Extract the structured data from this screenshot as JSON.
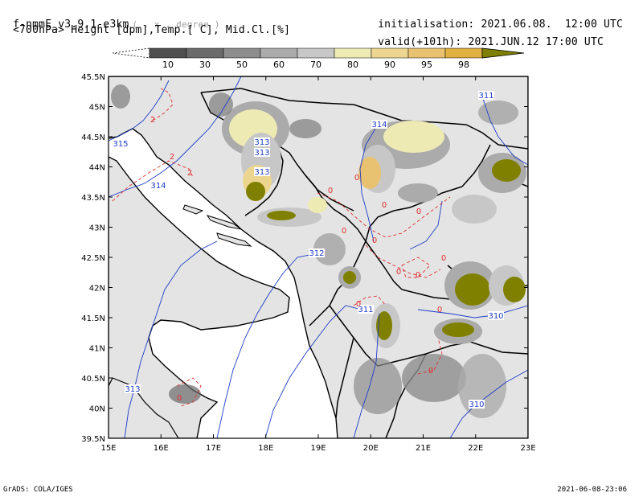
{
  "header": {
    "model": "f-nmmE_v3.9.1-e3km",
    "resolution_note": "( . x . degree )",
    "fields": "<700hPa> Height [dpm],Temp.[ C], Mid.Cl.[%]",
    "init_label": "initialisation:",
    "init_value": "2021.06.08.  12:00 UTC",
    "valid_label": "valid(+101h):",
    "valid_value": "2021.JUN.12 17:00 UTC"
  },
  "colorbar": {
    "labels": [
      "10",
      "30",
      "50",
      "60",
      "70",
      "80",
      "90",
      "95",
      "98"
    ],
    "colors": [
      "#4f4f4f",
      "#6b6b6b",
      "#8d8d8d",
      "#ababab",
      "#c7c7c7",
      "#eeeab4",
      "#ecd68f",
      "#e9c271",
      "#e0b040",
      "#808000"
    ]
  },
  "map": {
    "lat_labels": [
      "45.5N",
      "45N",
      "44.5N",
      "44N",
      "43.5N",
      "43N",
      "42.5N",
      "42N",
      "41.5N",
      "41N",
      "40.5N",
      "40N",
      "39.5N"
    ],
    "lon_labels": [
      "15E",
      "16E",
      "17E",
      "18E",
      "19E",
      "20E",
      "21E",
      "22E",
      "23E"
    ],
    "height_contour_labels": [
      "311",
      "314",
      "313",
      "313",
      "313",
      "315",
      "314",
      "312",
      "311",
      "310",
      "313",
      "310"
    ],
    "temp_contour_labels": [
      "2",
      "2",
      "2",
      "0",
      "0",
      "0",
      "0",
      "0",
      "0",
      "0",
      "0",
      "0",
      "0",
      "0",
      "0",
      "0"
    ],
    "land_color": "#e4e4e4",
    "height_contour_color": "#1e3cc8",
    "temp_contour_color": "#e03030"
  },
  "footer": {
    "left": "GrADS: COLA/IGES",
    "right": "2021-06-08-23:06"
  }
}
